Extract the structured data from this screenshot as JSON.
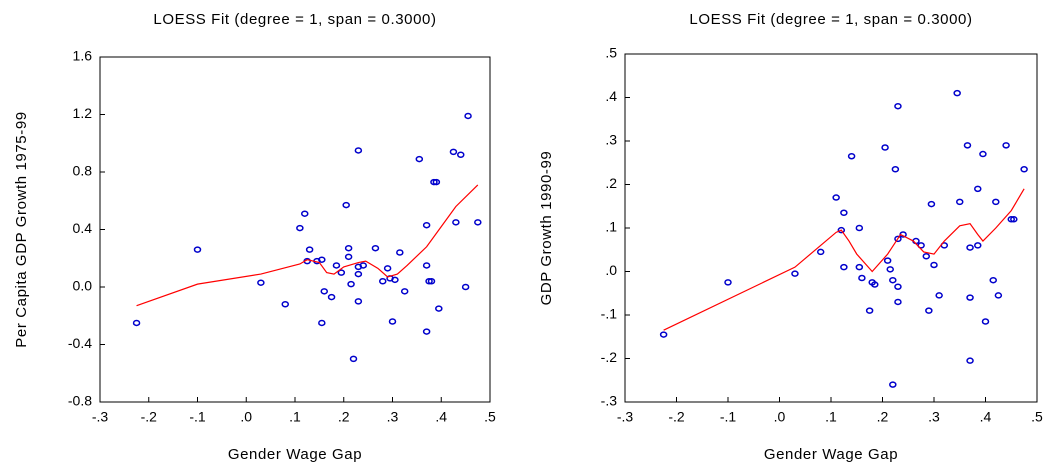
{
  "chart_data": [
    {
      "type": "scatter",
      "title": "LOESS Fit (degree = 1, span = 0.3000)",
      "x_label": "Gender Wage Gap",
      "y_label": "Per Capita GDP Growth 1975-99",
      "xlim": [
        -0.3,
        0.5
      ],
      "ylim": [
        -0.8,
        1.6
      ],
      "xticks": [
        {
          "value": -0.3,
          "label": "-.3"
        },
        {
          "value": -0.2,
          "label": "-.2"
        },
        {
          "value": -0.1,
          "label": "-.1"
        },
        {
          "value": 0,
          "label": ".0"
        },
        {
          "value": 0.1,
          "label": ".1"
        },
        {
          "value": 0.2,
          "label": ".2"
        },
        {
          "value": 0.3,
          "label": ".3"
        },
        {
          "value": 0.4,
          "label": ".4"
        },
        {
          "value": 0.5,
          "label": ".5"
        }
      ],
      "yticks": [
        -0.8,
        -0.4,
        {
          "value": 0,
          "label": "0.0"
        },
        0.4,
        0.8,
        1.2,
        1.6
      ],
      "series": [
        {
          "style": "markers",
          "color": "#0000cc",
          "x": [
            -0.225,
            -0.1,
            0.03,
            0.08,
            0.11,
            0.12,
            0.13,
            0.125,
            0.145,
            0.155,
            0.16,
            0.155,
            0.175,
            0.185,
            0.195,
            0.205,
            0.21,
            0.21,
            0.215,
            0.22,
            0.23,
            0.23,
            0.23,
            0.23,
            0.24,
            0.265,
            0.28,
            0.29,
            0.295,
            0.3,
            0.305,
            0.315,
            0.325,
            0.355,
            0.37,
            0.37,
            0.37,
            0.375,
            0.38,
            0.385,
            0.39,
            0.395,
            0.425,
            0.43,
            0.44,
            0.45,
            0.455,
            0.475
          ],
          "values": [
            -0.25,
            0.26,
            0.03,
            -0.12,
            0.41,
            0.51,
            0.26,
            0.18,
            0.18,
            0.19,
            -0.03,
            -0.25,
            -0.07,
            0.15,
            0.1,
            0.57,
            0.27,
            0.21,
            0.02,
            -0.5,
            0.95,
            0.14,
            0.09,
            -0.1,
            0.15,
            0.27,
            0.04,
            0.13,
            0.06,
            -0.24,
            0.05,
            0.24,
            -0.03,
            0.89,
            0.43,
            0.15,
            -0.31,
            0.04,
            0.04,
            0.73,
            0.73,
            -0.15,
            0.94,
            0.45,
            0.92,
            0.0,
            1.19,
            0.45
          ]
        },
        {
          "style": "line",
          "color": "#ff0000",
          "x": [
            -0.225,
            -0.1,
            0.03,
            0.11,
            0.125,
            0.15,
            0.165,
            0.18,
            0.2,
            0.23,
            0.245,
            0.27,
            0.29,
            0.31,
            0.33,
            0.37,
            0.4,
            0.43,
            0.475
          ],
          "values": [
            -0.13,
            0.02,
            0.09,
            0.16,
            0.19,
            0.17,
            0.1,
            0.09,
            0.14,
            0.17,
            0.18,
            0.13,
            0.07,
            0.09,
            0.15,
            0.28,
            0.42,
            0.56,
            0.71
          ]
        }
      ]
    },
    {
      "type": "scatter",
      "title": "LOESS Fit (degree = 1, span = 0.3000)",
      "x_label": "Gender Wage Gap",
      "y_label": "GDP Growth 1990-99",
      "xlim": [
        -0.3,
        0.5
      ],
      "ylim": [
        -0.3,
        0.5
      ],
      "xticks": [
        {
          "value": -0.3,
          "label": "-.3"
        },
        {
          "value": -0.2,
          "label": "-.2"
        },
        {
          "value": -0.1,
          "label": "-.1"
        },
        {
          "value": 0,
          "label": ".0"
        },
        {
          "value": 0.1,
          "label": ".1"
        },
        {
          "value": 0.2,
          "label": ".2"
        },
        {
          "value": 0.3,
          "label": ".3"
        },
        {
          "value": 0.4,
          "label": ".4"
        },
        {
          "value": 0.5,
          "label": ".5"
        }
      ],
      "yticks": [
        {
          "value": -0.3,
          "label": "-.3"
        },
        {
          "value": -0.2,
          "label": "-.2"
        },
        {
          "value": -0.1,
          "label": "-.1"
        },
        {
          "value": 0,
          "label": ".0"
        },
        {
          "value": 0.1,
          "label": ".1"
        },
        {
          "value": 0.2,
          "label": ".2"
        },
        {
          "value": 0.3,
          "label": ".3"
        },
        {
          "value": 0.4,
          "label": ".4"
        },
        {
          "value": 0.5,
          "label": ".5"
        }
      ],
      "series": [
        {
          "style": "markers",
          "color": "#0000cc",
          "x": [
            -0.225,
            -0.1,
            0.03,
            0.08,
            0.11,
            0.12,
            0.125,
            0.125,
            0.14,
            0.155,
            0.155,
            0.16,
            0.175,
            0.18,
            0.185,
            0.205,
            0.21,
            0.215,
            0.22,
            0.22,
            0.225,
            0.23,
            0.23,
            0.23,
            0.23,
            0.24,
            0.265,
            0.275,
            0.285,
            0.29,
            0.295,
            0.3,
            0.31,
            0.32,
            0.345,
            0.35,
            0.365,
            0.37,
            0.37,
            0.37,
            0.385,
            0.385,
            0.395,
            0.4,
            0.415,
            0.42,
            0.425,
            0.44,
            0.45,
            0.455,
            0.475
          ],
          "values": [
            -0.145,
            -0.025,
            -0.005,
            0.045,
            0.17,
            0.095,
            0.135,
            0.01,
            0.265,
            0.1,
            0.01,
            -0.015,
            -0.09,
            -0.025,
            -0.03,
            0.285,
            0.025,
            0.005,
            -0.26,
            -0.02,
            0.235,
            0.38,
            0.075,
            -0.035,
            -0.07,
            0.085,
            0.07,
            0.06,
            0.035,
            -0.09,
            0.155,
            0.015,
            -0.055,
            0.06,
            0.41,
            0.16,
            0.29,
            0.055,
            -0.06,
            -0.205,
            0.19,
            0.06,
            0.27,
            -0.115,
            -0.02,
            0.16,
            -0.055,
            0.29,
            0.12,
            0.12,
            0.235
          ]
        },
        {
          "style": "line",
          "color": "#ff0000",
          "x": [
            -0.225,
            0.03,
            0.11,
            0.12,
            0.135,
            0.15,
            0.18,
            0.21,
            0.235,
            0.26,
            0.28,
            0.3,
            0.32,
            0.35,
            0.37,
            0.385,
            0.395,
            0.42,
            0.45,
            0.475
          ],
          "values": [
            -0.135,
            0.01,
            0.09,
            0.095,
            0.07,
            0.04,
            0.0,
            0.04,
            0.085,
            0.07,
            0.045,
            0.04,
            0.07,
            0.105,
            0.11,
            0.085,
            0.07,
            0.1,
            0.14,
            0.19
          ]
        }
      ]
    }
  ]
}
